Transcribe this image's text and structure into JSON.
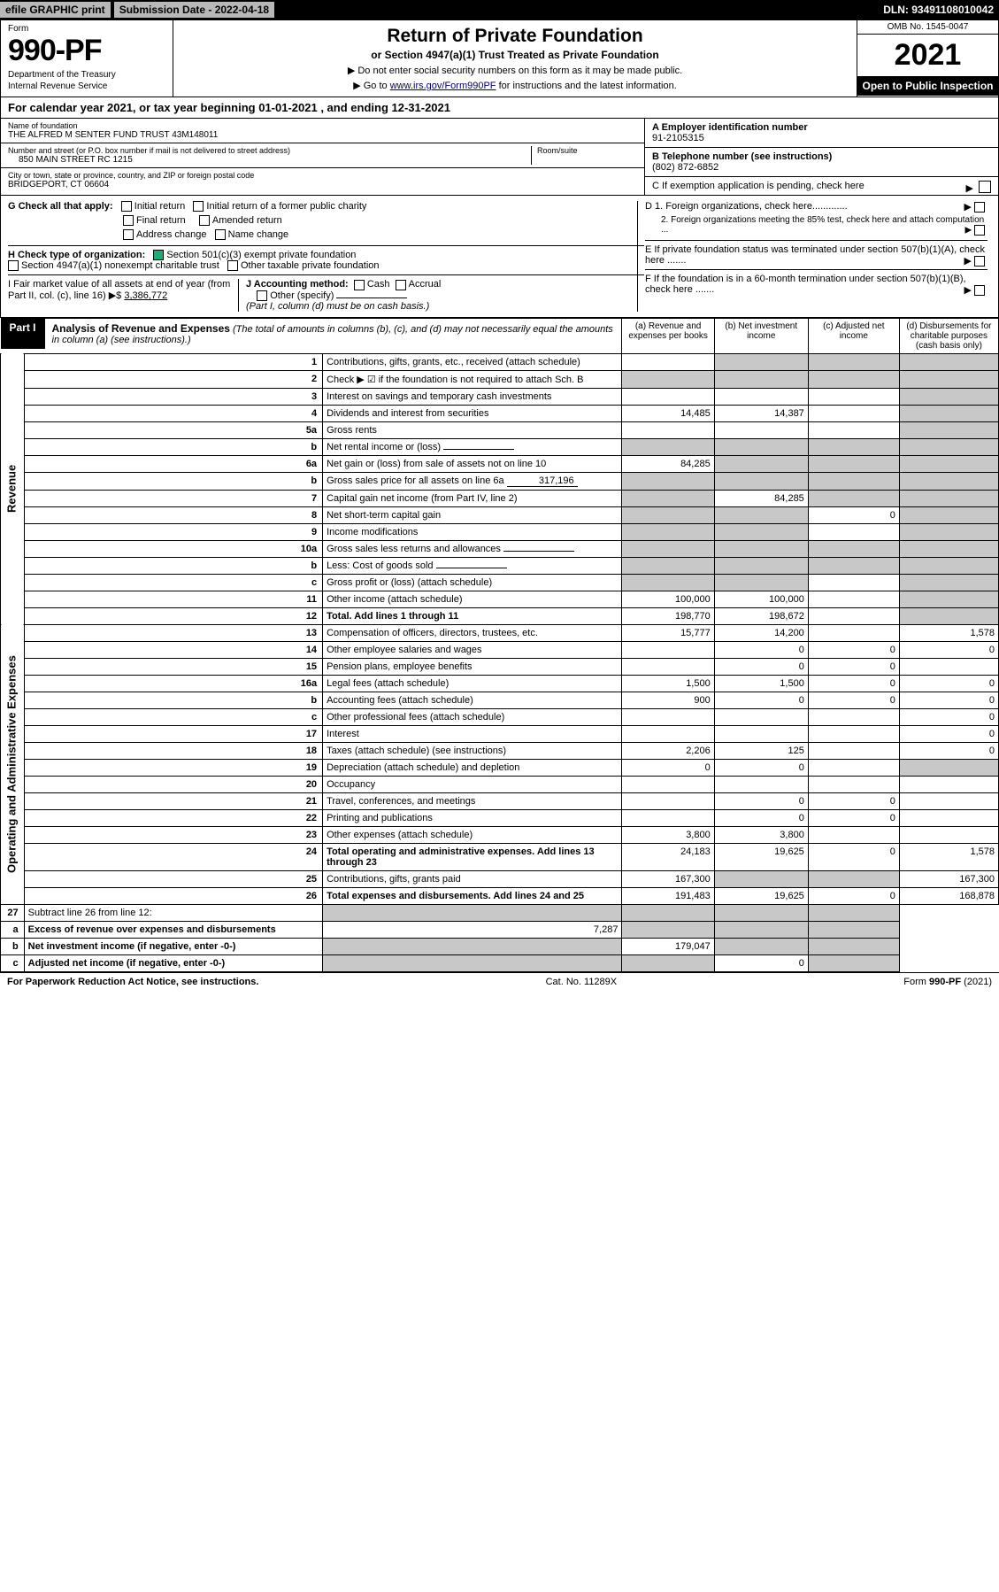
{
  "topbar": {
    "efile": "efile GRAPHIC print",
    "submission_label": "Submission Date - 2022-04-18",
    "dln": "DLN: 93491108010042"
  },
  "header": {
    "form_label": "Form",
    "form_number": "990-PF",
    "dept1": "Department of the Treasury",
    "dept2": "Internal Revenue Service",
    "title": "Return of Private Foundation",
    "subtitle": "or Section 4947(a)(1) Trust Treated as Private Foundation",
    "instr1": "▶ Do not enter social security numbers on this form as it may be made public.",
    "instr2_pre": "▶ Go to ",
    "instr2_link": "www.irs.gov/Form990PF",
    "instr2_post": " for instructions and the latest information.",
    "omb": "OMB No. 1545-0047",
    "year": "2021",
    "open": "Open to Public Inspection"
  },
  "calendar_line": "For calendar year 2021, or tax year beginning 01-01-2021             , and ending 12-31-2021",
  "foundation": {
    "name_label": "Name of foundation",
    "name": "THE ALFRED M SENTER FUND TRUST 43M148011",
    "addr_label": "Number and street (or P.O. box number if mail is not delivered to street address)",
    "room_label": "Room/suite",
    "addr": "850 MAIN STREET RC 1215",
    "city_label": "City or town, state or province, country, and ZIP or foreign postal code",
    "city": "BRIDGEPORT, CT  06604"
  },
  "right_info": {
    "A_label": "A Employer identification number",
    "A_val": "91-2105315",
    "B_label": "B Telephone number (see instructions)",
    "B_val": "(802) 872-6852",
    "C_label": "C If exemption application is pending, check here",
    "D1": "D 1. Foreign organizations, check here.............",
    "D2": "2. Foreign organizations meeting the 85% test, check here and attach computation ...",
    "E": "E  If private foundation status was terminated under section 507(b)(1)(A), check here .......",
    "F": "F  If the foundation is in a 60-month termination under section 507(b)(1)(B), check here ......."
  },
  "checks": {
    "G_label": "G Check all that apply:",
    "g_opts": [
      "Initial return",
      "Initial return of a former public charity",
      "Final return",
      "Amended return",
      "Address change",
      "Name change"
    ],
    "H_label": "H Check type of organization:",
    "H_opt1": "Section 501(c)(3) exempt private foundation",
    "H_opt2": "Section 4947(a)(1) nonexempt charitable trust",
    "H_opt3": "Other taxable private foundation",
    "I_label": "I Fair market value of all assets at end of year (from Part II, col. (c), line 16) ▶$ ",
    "I_val": "3,386,772",
    "J_label": "J Accounting method:",
    "J_opts": [
      "Cash",
      "Accrual"
    ],
    "J_other": "Other (specify)",
    "J_note": "(Part I, column (d) must be on cash basis.)"
  },
  "part1": {
    "label": "Part I",
    "title": "Analysis of Revenue and Expenses",
    "note": " (The total of amounts in columns (b), (c), and (d) may not necessarily equal the amounts in column (a) (see instructions).)",
    "col_a": "(a) Revenue and expenses per books",
    "col_b": "(b) Net investment income",
    "col_c": "(c) Adjusted net income",
    "col_d": "(d) Disbursements for charitable purposes (cash basis only)"
  },
  "side_labels": {
    "revenue": "Revenue",
    "expenses": "Operating and Administrative Expenses"
  },
  "rows": [
    {
      "n": "1",
      "desc": "Contributions, gifts, grants, etc., received (attach schedule)",
      "a": "",
      "b": "shaded",
      "c": "shaded",
      "d": "shaded"
    },
    {
      "n": "2",
      "desc": "Check ▶ ☑ if the foundation is not required to attach Sch. B",
      "a": "shaded",
      "b": "shaded",
      "c": "shaded",
      "d": "shaded",
      "bold_not": true
    },
    {
      "n": "3",
      "desc": "Interest on savings and temporary cash investments",
      "a": "",
      "b": "",
      "c": "",
      "d": "shaded"
    },
    {
      "n": "4",
      "desc": "Dividends and interest from securities",
      "a": "14,485",
      "b": "14,387",
      "c": "",
      "d": "shaded"
    },
    {
      "n": "5a",
      "desc": "Gross rents",
      "a": "",
      "b": "",
      "c": "",
      "d": "shaded"
    },
    {
      "n": "b",
      "desc": "Net rental income or (loss)",
      "a": "shaded",
      "b": "shaded",
      "c": "shaded",
      "d": "shaded",
      "inline": ""
    },
    {
      "n": "6a",
      "desc": "Net gain or (loss) from sale of assets not on line 10",
      "a": "84,285",
      "b": "shaded",
      "c": "shaded",
      "d": "shaded"
    },
    {
      "n": "b",
      "desc": "Gross sales price for all assets on line 6a",
      "a": "shaded",
      "b": "shaded",
      "c": "shaded",
      "d": "shaded",
      "inline": "317,196"
    },
    {
      "n": "7",
      "desc": "Capital gain net income (from Part IV, line 2)",
      "a": "shaded",
      "b": "84,285",
      "c": "shaded",
      "d": "shaded"
    },
    {
      "n": "8",
      "desc": "Net short-term capital gain",
      "a": "shaded",
      "b": "shaded",
      "c": "0",
      "d": "shaded"
    },
    {
      "n": "9",
      "desc": "Income modifications",
      "a": "shaded",
      "b": "shaded",
      "c": "",
      "d": "shaded"
    },
    {
      "n": "10a",
      "desc": "Gross sales less returns and allowances",
      "a": "shaded",
      "b": "shaded",
      "c": "shaded",
      "d": "shaded",
      "inline": ""
    },
    {
      "n": "b",
      "desc": "Less: Cost of goods sold",
      "a": "shaded",
      "b": "shaded",
      "c": "shaded",
      "d": "shaded",
      "inline": ""
    },
    {
      "n": "c",
      "desc": "Gross profit or (loss) (attach schedule)",
      "a": "shaded",
      "b": "shaded",
      "c": "",
      "d": "shaded"
    },
    {
      "n": "11",
      "desc": "Other income (attach schedule)",
      "a": "100,000",
      "b": "100,000",
      "c": "",
      "d": "shaded"
    },
    {
      "n": "12",
      "desc": "Total. Add lines 1 through 11",
      "a": "198,770",
      "b": "198,672",
      "c": "",
      "d": "shaded",
      "bold": true
    }
  ],
  "exp_rows": [
    {
      "n": "13",
      "desc": "Compensation of officers, directors, trustees, etc.",
      "a": "15,777",
      "b": "14,200",
      "c": "",
      "d": "1,578"
    },
    {
      "n": "14",
      "desc": "Other employee salaries and wages",
      "a": "",
      "b": "0",
      "c": "0",
      "d": "0"
    },
    {
      "n": "15",
      "desc": "Pension plans, employee benefits",
      "a": "",
      "b": "0",
      "c": "0",
      "d": ""
    },
    {
      "n": "16a",
      "desc": "Legal fees (attach schedule)",
      "a": "1,500",
      "b": "1,500",
      "c": "0",
      "d": "0"
    },
    {
      "n": "b",
      "desc": "Accounting fees (attach schedule)",
      "a": "900",
      "b": "0",
      "c": "0",
      "d": "0"
    },
    {
      "n": "c",
      "desc": "Other professional fees (attach schedule)",
      "a": "",
      "b": "",
      "c": "",
      "d": "0"
    },
    {
      "n": "17",
      "desc": "Interest",
      "a": "",
      "b": "",
      "c": "",
      "d": "0"
    },
    {
      "n": "18",
      "desc": "Taxes (attach schedule) (see instructions)",
      "a": "2,206",
      "b": "125",
      "c": "",
      "d": "0"
    },
    {
      "n": "19",
      "desc": "Depreciation (attach schedule) and depletion",
      "a": "0",
      "b": "0",
      "c": "",
      "d": "shaded"
    },
    {
      "n": "20",
      "desc": "Occupancy",
      "a": "",
      "b": "",
      "c": "",
      "d": ""
    },
    {
      "n": "21",
      "desc": "Travel, conferences, and meetings",
      "a": "",
      "b": "0",
      "c": "0",
      "d": ""
    },
    {
      "n": "22",
      "desc": "Printing and publications",
      "a": "",
      "b": "0",
      "c": "0",
      "d": ""
    },
    {
      "n": "23",
      "desc": "Other expenses (attach schedule)",
      "a": "3,800",
      "b": "3,800",
      "c": "",
      "d": ""
    },
    {
      "n": "24",
      "desc": "Total operating and administrative expenses. Add lines 13 through 23",
      "a": "24,183",
      "b": "19,625",
      "c": "0",
      "d": "1,578",
      "bold": true
    },
    {
      "n": "25",
      "desc": "Contributions, gifts, grants paid",
      "a": "167,300",
      "b": "shaded",
      "c": "shaded",
      "d": "167,300"
    },
    {
      "n": "26",
      "desc": "Total expenses and disbursements. Add lines 24 and 25",
      "a": "191,483",
      "b": "19,625",
      "c": "0",
      "d": "168,878",
      "bold": true
    }
  ],
  "bottom_rows": [
    {
      "n": "27",
      "desc": "Subtract line 26 from line 12:",
      "a": "shaded",
      "b": "shaded",
      "c": "shaded",
      "d": "shaded"
    },
    {
      "n": "a",
      "desc": "Excess of revenue over expenses and disbursements",
      "a": "7,287",
      "b": "shaded",
      "c": "shaded",
      "d": "shaded",
      "bold": true
    },
    {
      "n": "b",
      "desc": "Net investment income (if negative, enter -0-)",
      "a": "shaded",
      "b": "179,047",
      "c": "shaded",
      "d": "shaded",
      "bold": true
    },
    {
      "n": "c",
      "desc": "Adjusted net income (if negative, enter -0-)",
      "a": "shaded",
      "b": "shaded",
      "c": "0",
      "d": "shaded",
      "bold": true
    }
  ],
  "footer": {
    "left": "For Paperwork Reduction Act Notice, see instructions.",
    "center": "Cat. No. 11289X",
    "right": "Form 990-PF (2021)"
  },
  "colors": {
    "shaded": "#c8c8c8",
    "black": "#000000",
    "link": "#000066",
    "check_green": "#22aa77"
  }
}
